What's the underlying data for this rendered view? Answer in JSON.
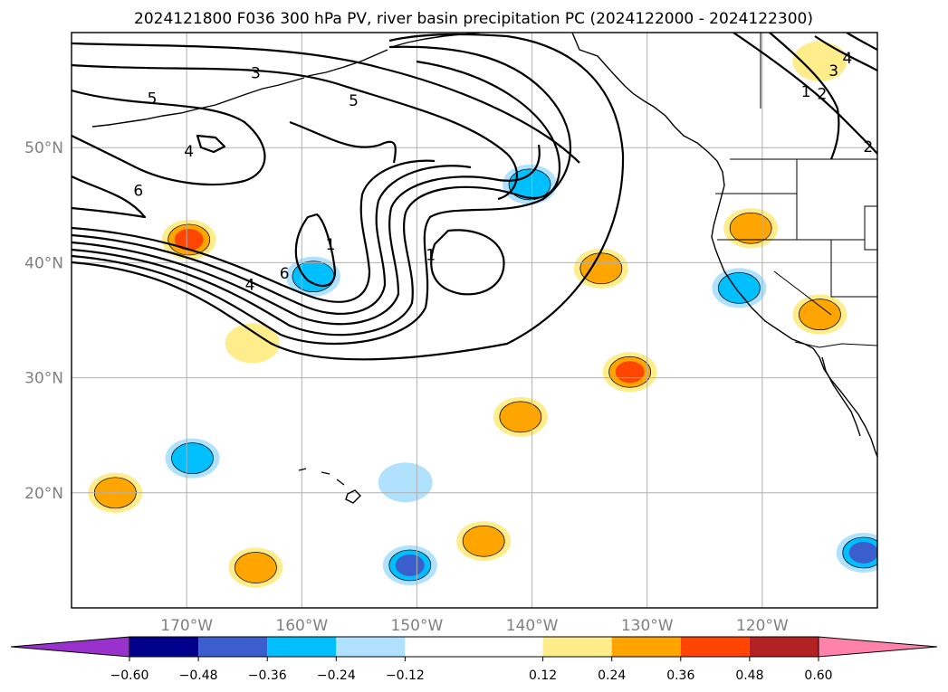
{
  "chart_data": {
    "type": "contour-map",
    "title": "2024121800 F036 300 hPa PV, river basin precipitation PC (2024122000 - 2024122300)",
    "map_extent": {
      "lon": [
        -180,
        -110
      ],
      "lat": [
        10,
        60
      ]
    },
    "grid": true,
    "x_ticks": [
      {
        "lon": -170,
        "label": "170°W"
      },
      {
        "lon": -160,
        "label": "160°W"
      },
      {
        "lon": -150,
        "label": "150°W"
      },
      {
        "lon": -140,
        "label": "140°W"
      },
      {
        "lon": -130,
        "label": "130°W"
      },
      {
        "lon": -120,
        "label": "120°W"
      }
    ],
    "y_ticks": [
      {
        "lat": 20,
        "label": "20°N"
      },
      {
        "lat": 30,
        "label": "30°N"
      },
      {
        "lat": 40,
        "label": "40°N"
      },
      {
        "lat": 50,
        "label": "50°N"
      }
    ],
    "pv_contour_labels": [
      {
        "text": "3",
        "lon": -164,
        "lat": 56.5
      },
      {
        "text": "5",
        "lon": -173,
        "lat": 54.3
      },
      {
        "text": "5",
        "lon": -155.5,
        "lat": 54.1
      },
      {
        "text": "4",
        "lon": -169.8,
        "lat": 49.7
      },
      {
        "text": "6",
        "lon": -174.2,
        "lat": 46.3
      },
      {
        "text": "1",
        "lon": -157.5,
        "lat": 41.6
      },
      {
        "text": "1",
        "lon": -148.8,
        "lat": 40.7
      },
      {
        "text": "6",
        "lon": -161.5,
        "lat": 39.1
      },
      {
        "text": "4",
        "lon": -164.5,
        "lat": 38.1
      },
      {
        "text": "3",
        "lon": -113.8,
        "lat": 56.7
      },
      {
        "text": "4",
        "lon": -112.6,
        "lat": 57.8
      },
      {
        "text": "1",
        "lon": -116.2,
        "lat": 54.9
      },
      {
        "text": "2",
        "lon": -114.8,
        "lat": 54.7
      },
      {
        "text": "2",
        "lon": -110.8,
        "lat": 50.1
      }
    ],
    "precip_pc_regions": [
      {
        "lon": -169.8,
        "lat": 42.0,
        "value": 0.46
      },
      {
        "lon": -159.0,
        "lat": 38.8,
        "value": -0.3
      },
      {
        "lon": -140.2,
        "lat": 46.8,
        "value": -0.32
      },
      {
        "lon": -134.0,
        "lat": 39.5,
        "value": 0.3
      },
      {
        "lon": -121.0,
        "lat": 43.0,
        "value": 0.28
      },
      {
        "lon": -122.0,
        "lat": 37.8,
        "value": -0.24
      },
      {
        "lon": -115.0,
        "lat": 35.5,
        "value": 0.34
      },
      {
        "lon": -131.5,
        "lat": 30.5,
        "value": 0.44
      },
      {
        "lon": -141.0,
        "lat": 26.6,
        "value": 0.3
      },
      {
        "lon": -164.3,
        "lat": 33.0,
        "value": 0.22
      },
      {
        "lon": -169.5,
        "lat": 23.0,
        "value": -0.34
      },
      {
        "lon": -176.2,
        "lat": 20.0,
        "value": 0.28
      },
      {
        "lon": -151.0,
        "lat": 20.9,
        "value": -0.2
      },
      {
        "lon": -144.2,
        "lat": 15.8,
        "value": 0.34
      },
      {
        "lon": -150.6,
        "lat": 13.7,
        "value": -0.4
      },
      {
        "lon": -164.0,
        "lat": 13.5,
        "value": 0.28
      },
      {
        "lon": -111.2,
        "lat": 14.8,
        "value": -0.44
      },
      {
        "lon": -115.0,
        "lat": 57.5,
        "value": 0.22
      }
    ],
    "colorbar": {
      "boundaries": [
        -0.6,
        -0.48,
        -0.36,
        -0.24,
        -0.12,
        0.12,
        0.24,
        0.36,
        0.48,
        0.6
      ],
      "tick_labels": [
        "−0.60",
        "−0.48",
        "−0.36",
        "−0.24",
        "−0.12",
        "0.12",
        "0.24",
        "0.36",
        "0.48",
        "0.60"
      ],
      "colors": [
        "#9932cc",
        "#00008b",
        "#3a5fcd",
        "#00bfff",
        "#b0e2ff",
        "#ffffff",
        "#ffec8b",
        "#ffa500",
        "#ff4500",
        "#b22222",
        "#ff82ab"
      ],
      "extend": "both"
    }
  }
}
